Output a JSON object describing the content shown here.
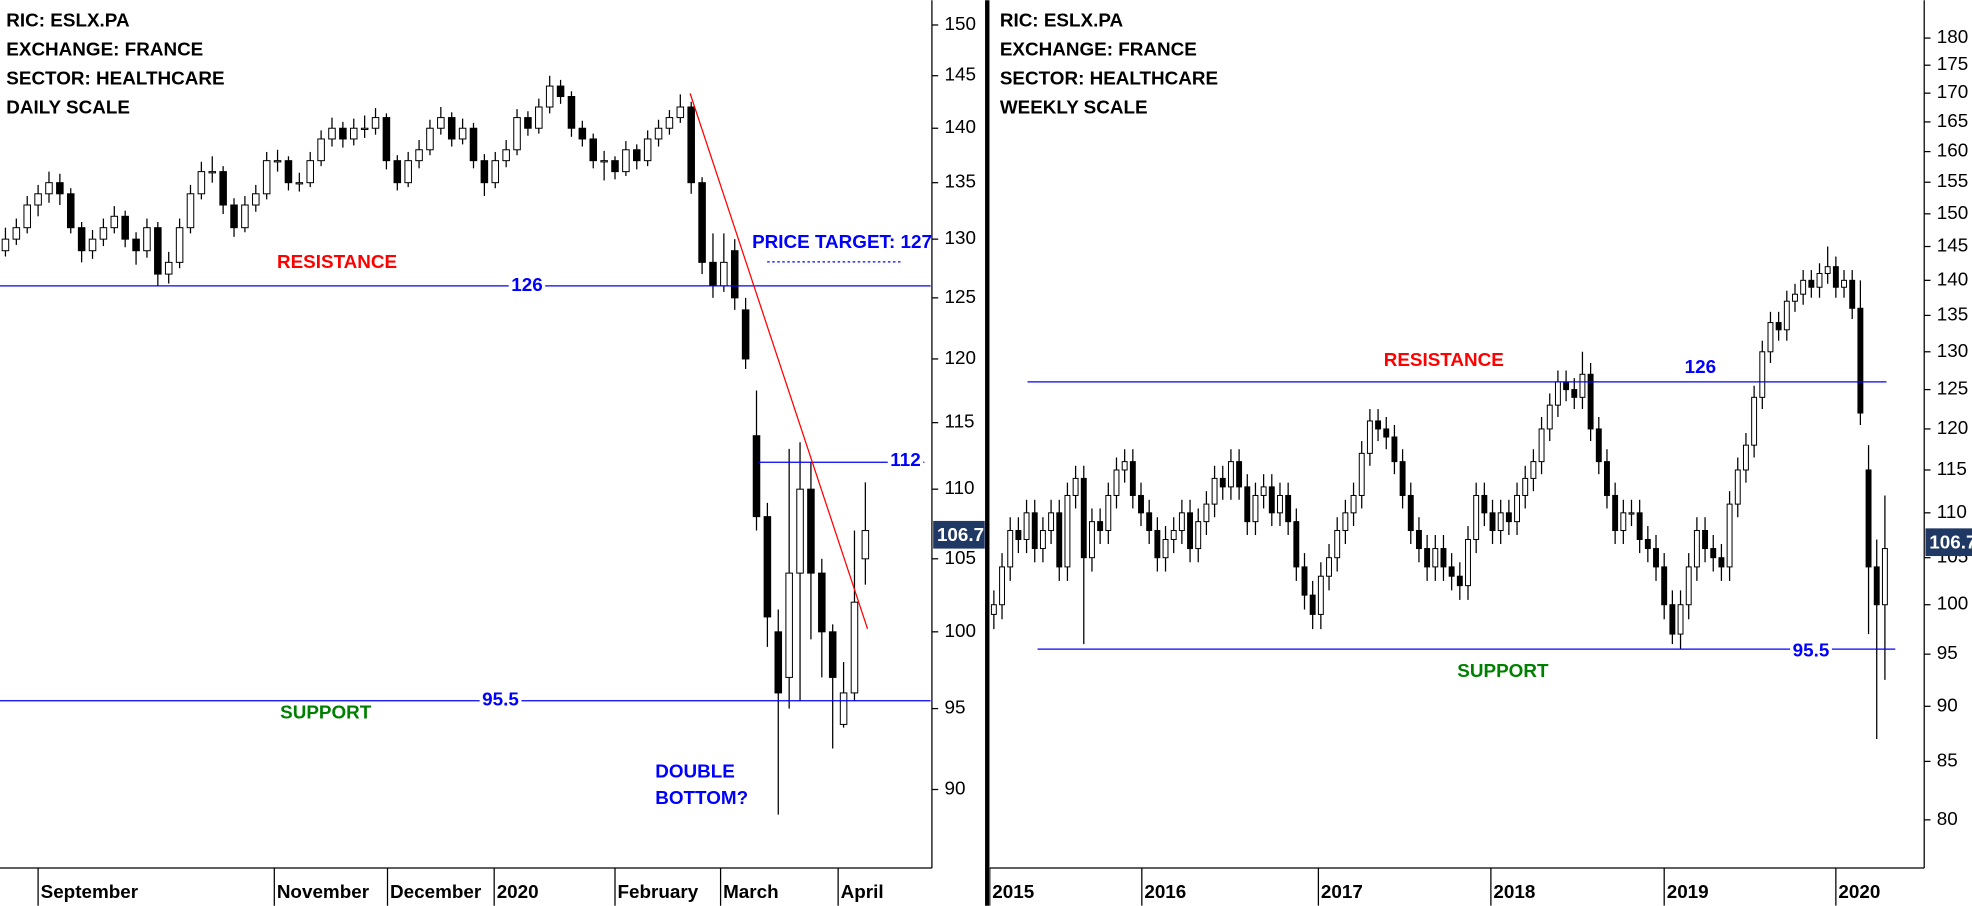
{
  "chart_data": [
    {
      "type": "candlestick",
      "info": [
        "RIC: ESLX.PA",
        "EXCHANGE: FRANCE",
        "SECTOR: HEALTHCARE",
        "DAILY SCALE"
      ],
      "resistance_label": "RESISTANCE",
      "support_label": "SUPPORT",
      "price_target": "PRICE TARGET: 127",
      "pattern_label": [
        "DOUBLE",
        "BOTTOM?"
      ],
      "log_scale": true,
      "colors": {
        "up": "#ffffff",
        "down": "#000000",
        "level": "#0000ff",
        "trend": "#ff0000",
        "last_price": "#1f3864"
      },
      "xlim": [
        0,
        85.5
      ],
      "xticks": [
        {
          "value": 3.5,
          "label": "September"
        },
        {
          "value": 25.2,
          "label": "November"
        },
        {
          "value": 35.6,
          "label": "December"
        },
        {
          "value": 45.4,
          "label": "2020"
        },
        {
          "value": 56.5,
          "label": "February"
        },
        {
          "value": 66.2,
          "label": "March"
        },
        {
          "value": 77,
          "label": "April"
        }
      ],
      "ylim": [
        85.4,
        152.5
      ],
      "yticks": [
        90,
        95,
        100,
        105,
        110,
        115,
        120,
        125,
        130,
        135,
        140,
        145,
        150
      ],
      "levels": [
        126,
        95.5,
        112
      ],
      "trendline": {
        "x": [
          63.4,
          79.7
        ],
        "y": [
          143.3,
          100.2
        ]
      },
      "last_price": 106.7,
      "ohlc": [
        [
          129,
          131,
          128.5,
          130
        ],
        [
          130,
          131.8,
          129.5,
          131
        ],
        [
          131,
          133.8,
          130.5,
          133
        ],
        [
          133,
          134.8,
          132,
          134
        ],
        [
          134,
          136,
          133.2,
          135
        ],
        [
          135,
          135.8,
          133,
          134
        ],
        [
          134,
          134.5,
          130.5,
          131
        ],
        [
          131,
          131.5,
          128,
          129
        ],
        [
          129,
          130.8,
          128.3,
          130
        ],
        [
          130,
          131.8,
          129.4,
          131
        ],
        [
          131,
          132.9,
          130.5,
          132
        ],
        [
          132,
          132.5,
          129.3,
          130
        ],
        [
          130,
          130.6,
          127.8,
          129
        ],
        [
          129,
          131.8,
          128.4,
          131
        ],
        [
          131,
          131.5,
          126,
          127
        ],
        [
          127,
          128.9,
          126.2,
          128
        ],
        [
          128,
          131.8,
          127.5,
          131
        ],
        [
          131,
          134.8,
          130.5,
          134
        ],
        [
          134,
          136.9,
          133.5,
          136
        ],
        [
          136,
          137.4,
          135,
          136
        ],
        [
          136,
          136.5,
          132.2,
          133
        ],
        [
          133,
          133.6,
          130.2,
          131
        ],
        [
          131,
          133.8,
          130.6,
          133
        ],
        [
          133,
          134.8,
          132.4,
          134
        ],
        [
          134,
          137.8,
          133.5,
          137
        ],
        [
          137,
          138,
          136,
          137
        ],
        [
          137,
          137.4,
          134.3,
          135
        ],
        [
          135,
          135.9,
          134.2,
          135
        ],
        [
          135,
          137.8,
          134.6,
          137
        ],
        [
          137,
          139.8,
          136.5,
          139
        ],
        [
          139,
          141,
          138.3,
          140
        ],
        [
          140,
          140.6,
          138.2,
          139
        ],
        [
          139,
          140.9,
          138.4,
          140
        ],
        [
          140,
          141.2,
          139.1,
          140
        ],
        [
          140,
          141.9,
          139.4,
          141
        ],
        [
          141,
          141.4,
          136.2,
          137
        ],
        [
          137,
          137.5,
          134.3,
          135
        ],
        [
          135,
          137.8,
          134.6,
          137
        ],
        [
          137,
          138.9,
          136.3,
          138
        ],
        [
          138,
          140.8,
          137.5,
          140
        ],
        [
          140,
          142,
          139.4,
          141
        ],
        [
          141,
          141.5,
          138.3,
          139
        ],
        [
          139,
          140.9,
          138.5,
          140
        ],
        [
          140,
          140.5,
          136.3,
          137
        ],
        [
          137,
          137.6,
          133.8,
          135
        ],
        [
          135,
          137.8,
          134.5,
          137
        ],
        [
          137,
          138.9,
          136.4,
          138
        ],
        [
          138,
          141.8,
          137.5,
          141
        ],
        [
          141,
          141.6,
          139.3,
          140
        ],
        [
          140,
          142.8,
          139.5,
          142
        ],
        [
          142,
          145,
          141.4,
          144
        ],
        [
          144,
          144.6,
          142.3,
          143
        ],
        [
          143,
          143.5,
          139.2,
          140
        ],
        [
          140,
          140.7,
          138.3,
          139
        ],
        [
          139,
          139.5,
          136.3,
          137
        ],
        [
          137,
          137.9,
          135.2,
          137
        ],
        [
          137,
          137.4,
          135.3,
          136
        ],
        [
          136,
          138.8,
          135.6,
          138
        ],
        [
          138,
          138.5,
          136.2,
          137
        ],
        [
          137,
          139.8,
          136.5,
          139
        ],
        [
          139,
          140.8,
          138.3,
          140
        ],
        [
          140,
          141.7,
          139.4,
          141
        ],
        [
          141,
          143.2,
          140.5,
          142
        ],
        [
          142,
          142.5,
          134,
          135
        ],
        [
          135,
          135.5,
          127,
          128
        ],
        [
          128,
          130.5,
          125,
          126
        ],
        [
          126,
          130.5,
          125.5,
          128
        ],
        [
          129,
          130,
          124,
          125
        ],
        [
          124,
          125,
          119.2,
          120
        ],
        [
          114,
          117.5,
          107,
          108
        ],
        [
          108,
          109,
          99,
          101
        ],
        [
          100,
          101.5,
          88.5,
          96
        ],
        [
          97,
          113,
          95,
          104
        ],
        [
          104,
          113.5,
          95.5,
          110
        ],
        [
          110,
          112,
          99.5,
          104
        ],
        [
          104,
          105,
          97,
          100
        ],
        [
          100,
          100.5,
          92.5,
          97
        ],
        [
          94,
          98,
          93.8,
          96
        ],
        [
          96,
          107,
          95.5,
          102
        ],
        [
          105,
          110.5,
          103.2,
          107
        ]
      ]
    },
    {
      "type": "candlestick",
      "info": [
        "RIC: ESLX.PA",
        "EXCHANGE: FRANCE",
        "SECTOR: HEALTHCARE",
        "WEEKLY SCALE"
      ],
      "resistance_label": "RESISTANCE",
      "support_label": "SUPPORT",
      "log_scale": true,
      "colors": {
        "up": "#ffffff",
        "down": "#000000",
        "level": "#0000ff",
        "last_price": "#1f3864"
      },
      "xlim": [
        0,
        114
      ],
      "xticks": [
        {
          "value": 0,
          "label": "2015"
        },
        {
          "value": 18.6,
          "label": "2016"
        },
        {
          "value": 40.2,
          "label": "2017"
        },
        {
          "value": 61.3,
          "label": "2018"
        },
        {
          "value": 82.5,
          "label": "2019"
        },
        {
          "value": 103.5,
          "label": "2020"
        }
      ],
      "ylim": [
        76.1,
        187.2
      ],
      "yticks": [
        80,
        85,
        90,
        95,
        100,
        105,
        110,
        115,
        120,
        125,
        130,
        135,
        140,
        145,
        150,
        155,
        160,
        165,
        170,
        175,
        180
      ],
      "levels": [
        126,
        95.5
      ],
      "last_price": 106.7,
      "ohlc": [
        [
          99,
          101.5,
          97.5,
          100
        ],
        [
          100,
          105.5,
          98.5,
          104
        ],
        [
          104,
          109.5,
          102.5,
          108
        ],
        [
          108,
          109.5,
          105.5,
          107
        ],
        [
          107,
          111.5,
          105.5,
          110
        ],
        [
          110,
          111.5,
          104.5,
          106
        ],
        [
          106,
          109.5,
          104.5,
          108
        ],
        [
          108,
          111.5,
          106.5,
          110
        ],
        [
          110,
          111.5,
          102.5,
          104
        ],
        [
          104,
          113.5,
          102.5,
          112
        ],
        [
          112,
          115.5,
          110.5,
          114
        ],
        [
          114,
          115.5,
          96,
          105
        ],
        [
          105,
          110.5,
          103.5,
          109
        ],
        [
          109,
          110.5,
          106.5,
          108
        ],
        [
          108,
          113.5,
          106.5,
          112
        ],
        [
          112,
          116.5,
          110.5,
          115
        ],
        [
          115,
          117.5,
          113.5,
          116
        ],
        [
          116,
          117.5,
          110.5,
          112
        ],
        [
          112,
          113.5,
          108.5,
          110
        ],
        [
          110,
          111.5,
          106.5,
          108
        ],
        [
          108,
          109.5,
          103.5,
          105
        ],
        [
          105,
          108.5,
          103.5,
          107
        ],
        [
          107,
          109.5,
          105.5,
          108
        ],
        [
          108,
          111.5,
          106.5,
          110
        ],
        [
          110,
          111.5,
          104.5,
          106
        ],
        [
          106,
          110.5,
          104.5,
          109
        ],
        [
          109,
          112.5,
          107.5,
          111
        ],
        [
          111,
          115.5,
          109.5,
          114
        ],
        [
          114,
          115.5,
          111.5,
          113
        ],
        [
          113,
          117.5,
          111.5,
          116
        ],
        [
          116,
          117.5,
          111.5,
          113
        ],
        [
          113,
          114.5,
          107.5,
          109
        ],
        [
          109,
          113.5,
          107.5,
          112
        ],
        [
          112,
          114.5,
          110.5,
          113
        ],
        [
          113,
          114.5,
          108.5,
          110
        ],
        [
          110,
          113.5,
          108.5,
          112
        ],
        [
          112,
          113.5,
          107.5,
          109
        ],
        [
          109,
          110.5,
          102.5,
          104
        ],
        [
          104,
          105.5,
          99.5,
          101
        ],
        [
          101,
          102.5,
          97.5,
          99
        ],
        [
          99,
          104.5,
          97.5,
          103
        ],
        [
          103,
          106.5,
          101.5,
          105
        ],
        [
          105,
          109.5,
          103.5,
          108
        ],
        [
          108,
          111.5,
          106.5,
          110
        ],
        [
          110,
          113.5,
          108.5,
          112
        ],
        [
          112,
          118.5,
          110.5,
          117
        ],
        [
          117,
          122.5,
          115.5,
          121
        ],
        [
          121,
          122.5,
          118.5,
          120
        ],
        [
          120,
          121.5,
          117.5,
          119
        ],
        [
          119,
          120.5,
          114.5,
          116
        ],
        [
          116,
          117.5,
          110.5,
          112
        ],
        [
          112,
          113.5,
          106.5,
          108
        ],
        [
          108,
          109.5,
          104.5,
          106
        ],
        [
          106,
          107.5,
          102.5,
          104
        ],
        [
          104,
          107.5,
          102.5,
          106
        ],
        [
          106,
          107.5,
          102.5,
          104
        ],
        [
          104,
          105.5,
          101.5,
          103
        ],
        [
          103,
          104.5,
          100.5,
          102
        ],
        [
          102,
          108.5,
          100.5,
          107
        ],
        [
          107,
          113.5,
          105.5,
          112
        ],
        [
          112,
          113.5,
          108.5,
          110
        ],
        [
          110,
          111.5,
          106.5,
          108
        ],
        [
          108,
          111.5,
          106.5,
          110
        ],
        [
          110,
          111.5,
          107.5,
          109
        ],
        [
          109,
          113.5,
          107.5,
          112
        ],
        [
          112,
          115.5,
          110.5,
          114
        ],
        [
          114,
          117.5,
          112.5,
          116
        ],
        [
          116,
          121.5,
          114.5,
          120
        ],
        [
          120,
          124.5,
          118.5,
          123
        ],
        [
          123,
          127.5,
          121.5,
          126
        ],
        [
          126,
          127.5,
          123.5,
          125
        ],
        [
          125,
          126.5,
          122.5,
          124
        ],
        [
          124,
          130,
          122.5,
          127
        ],
        [
          127,
          128.5,
          118.5,
          120
        ],
        [
          120,
          121.5,
          114.5,
          116
        ],
        [
          116,
          117.5,
          110.5,
          112
        ],
        [
          112,
          113.5,
          106.5,
          108
        ],
        [
          108,
          111.5,
          106.5,
          110
        ],
        [
          110,
          111.5,
          108.5,
          110
        ],
        [
          110,
          111.5,
          105.5,
          107
        ],
        [
          107,
          108.5,
          104.5,
          106
        ],
        [
          106,
          107.5,
          102.5,
          104
        ],
        [
          104,
          105.5,
          98.5,
          100
        ],
        [
          100,
          101.5,
          96,
          97
        ],
        [
          97,
          101.5,
          95.5,
          100
        ],
        [
          100,
          105.5,
          98.5,
          104
        ],
        [
          104,
          109.5,
          102.5,
          108
        ],
        [
          108,
          109.5,
          104.5,
          106
        ],
        [
          106,
          107.5,
          103.5,
          105
        ],
        [
          105,
          106.5,
          102.5,
          104
        ],
        [
          104,
          112.5,
          102.5,
          111
        ],
        [
          111,
          116.5,
          109.5,
          115
        ],
        [
          115,
          119.5,
          113.5,
          118
        ],
        [
          118,
          125.5,
          116.5,
          124
        ],
        [
          124,
          131.5,
          122.5,
          130
        ],
        [
          130,
          135.5,
          128.5,
          134
        ],
        [
          134,
          135.5,
          131.5,
          133
        ],
        [
          133,
          138.5,
          131.5,
          137
        ],
        [
          137,
          139.5,
          135.5,
          138
        ],
        [
          138,
          141.5,
          136.5,
          140
        ],
        [
          140,
          141.5,
          137.5,
          139
        ],
        [
          139,
          142.5,
          137.5,
          141
        ],
        [
          141,
          145,
          139.5,
          142
        ],
        [
          142,
          143.5,
          137.5,
          139
        ],
        [
          139,
          141.5,
          137.5,
          140
        ],
        [
          140,
          141.5,
          134.5,
          136
        ],
        [
          136,
          140,
          120.5,
          122
        ],
        [
          115,
          118,
          97,
          104
        ],
        [
          104,
          107,
          87,
          100
        ],
        [
          100,
          112,
          92.5,
          106
        ]
      ]
    }
  ]
}
